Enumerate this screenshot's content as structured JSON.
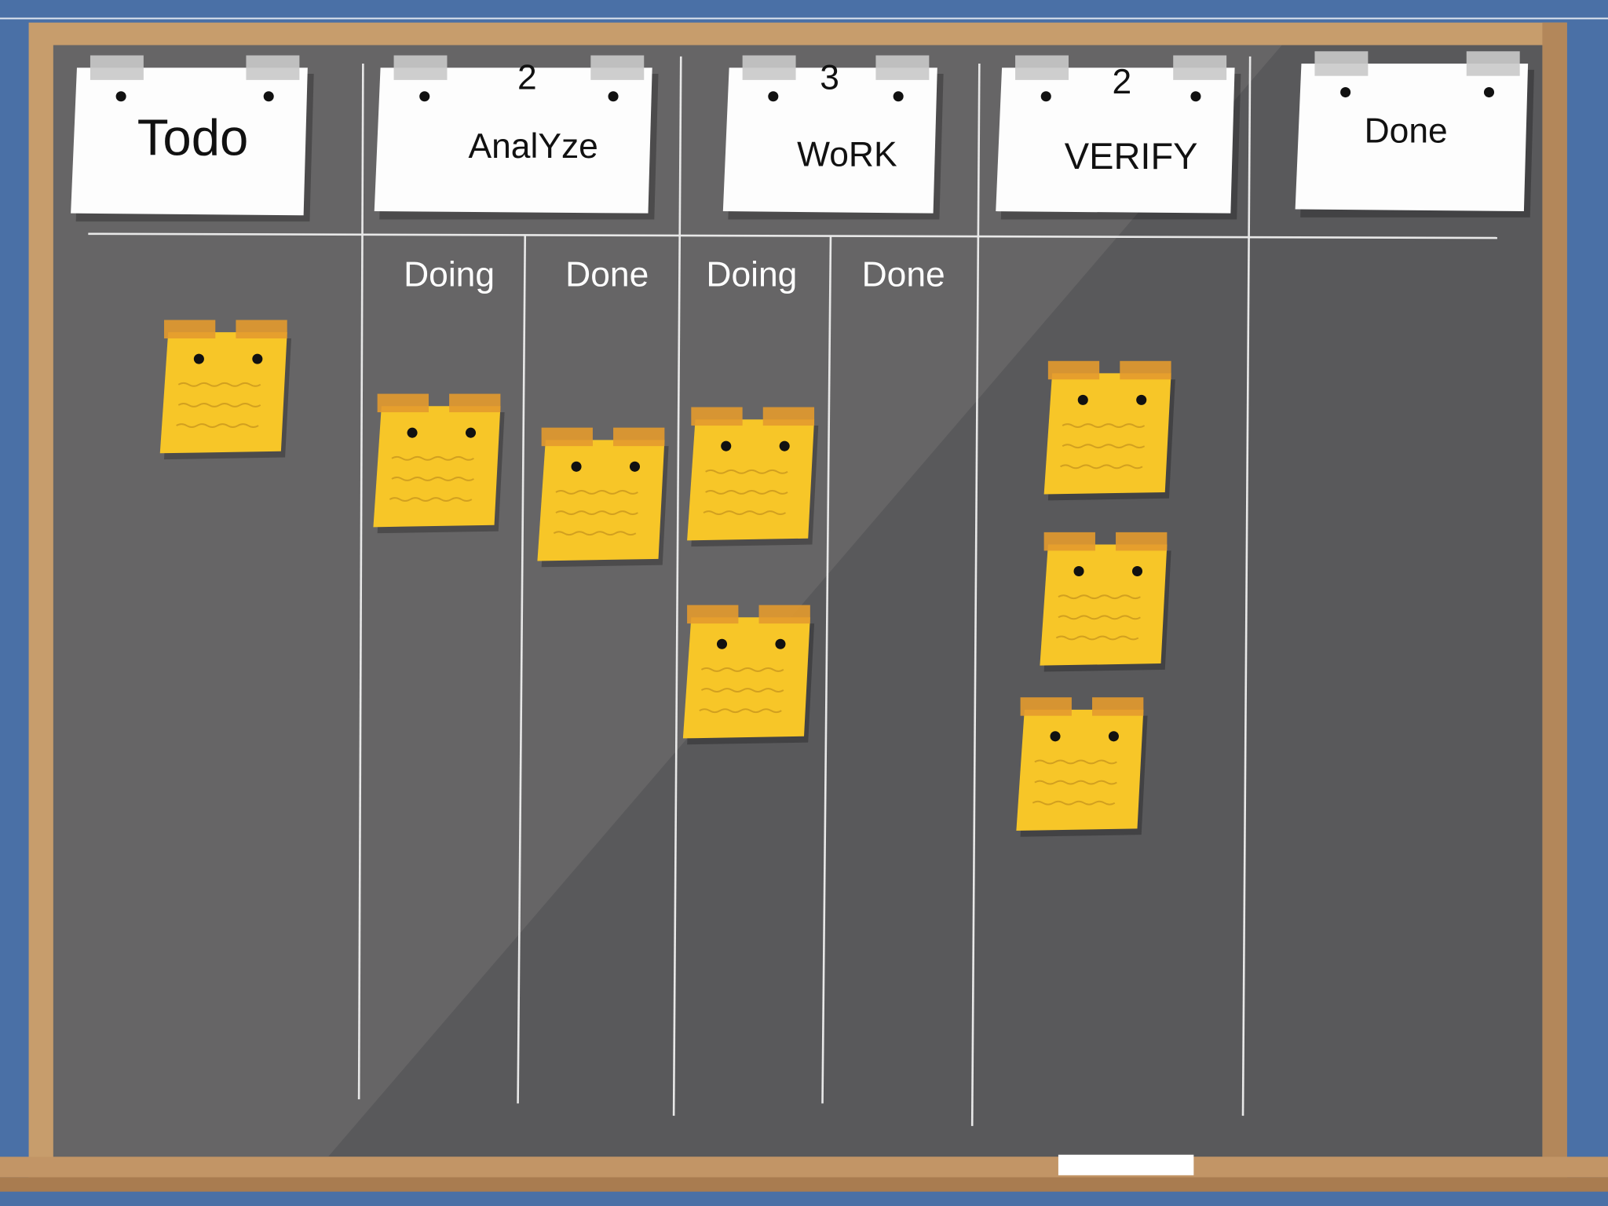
{
  "columns": [
    {
      "title": "Todo"
    },
    {
      "title": "AnalYze",
      "wip_limit": 2,
      "subcolumns": [
        "Doing",
        "Done"
      ]
    },
    {
      "title": "WoRK",
      "wip_limit": 3,
      "subcolumns": [
        "Doing",
        "Done"
      ]
    },
    {
      "title": "VERIFY",
      "wip_limit": 2
    },
    {
      "title": "Done"
    }
  ]
}
